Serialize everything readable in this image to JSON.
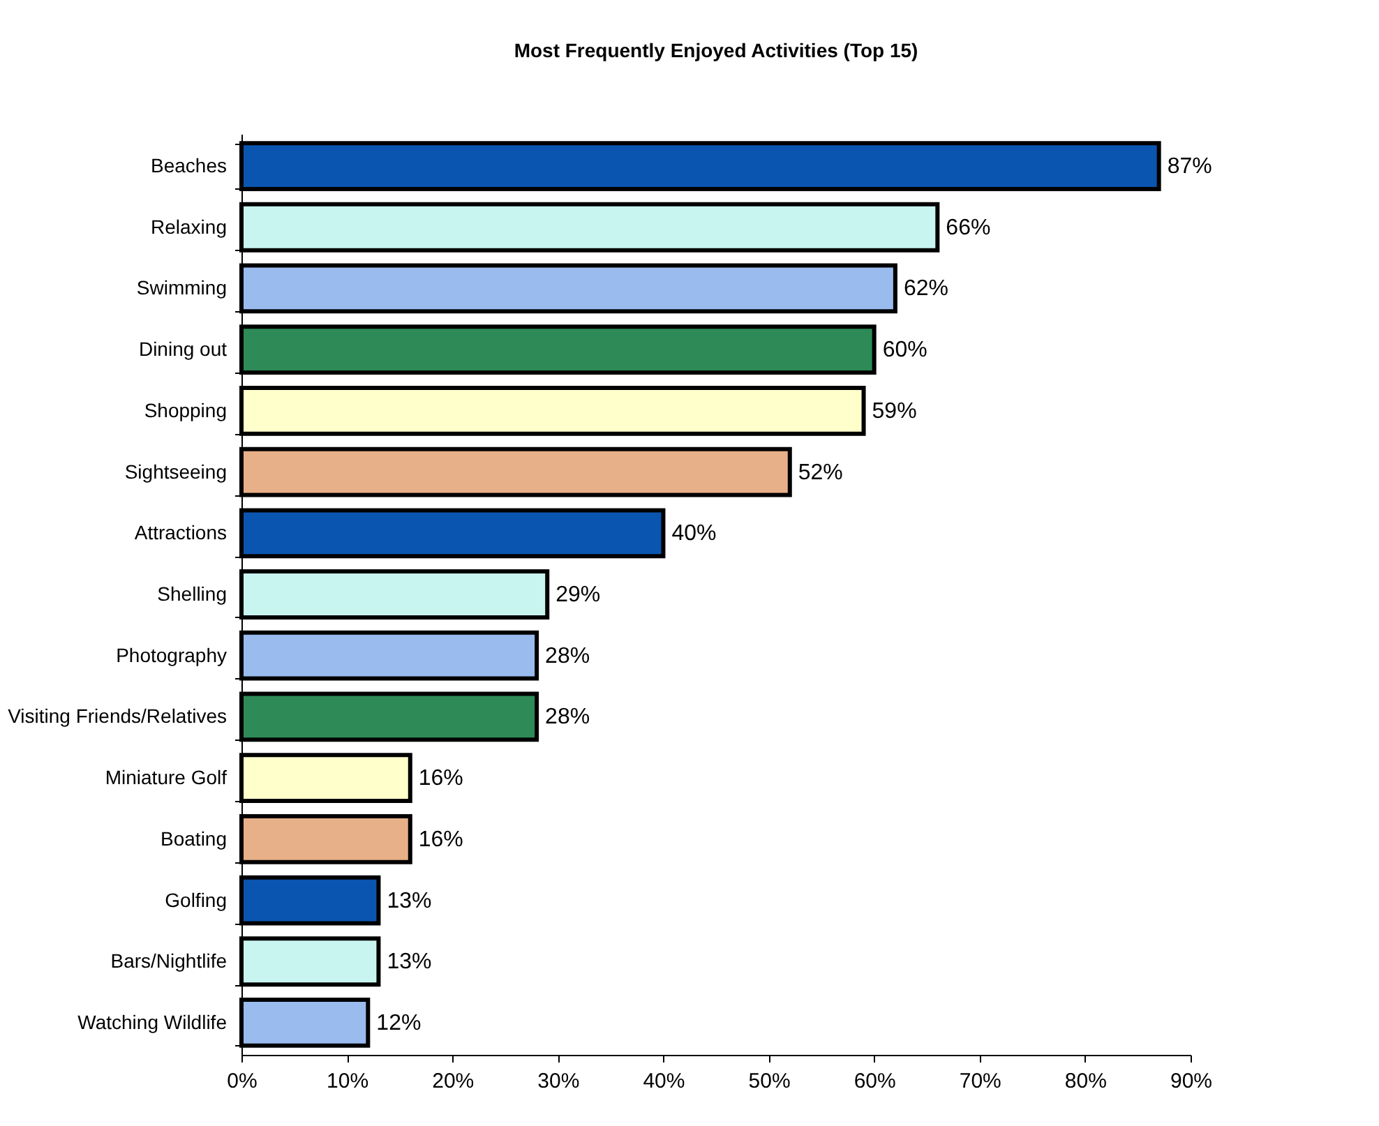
{
  "chart_data": {
    "type": "bar",
    "orientation": "horizontal",
    "title": "Most Frequently Enjoyed Activities (Top 15)",
    "categories": [
      "Beaches",
      "Relaxing",
      "Swimming",
      "Dining out",
      "Shopping",
      "Sightseeing",
      "Attractions",
      "Shelling",
      "Photography",
      "Visiting Friends/Relatives",
      "Miniature Golf",
      "Boating",
      "Golfing",
      "Bars/Nightlife",
      "Watching Wildlife"
    ],
    "values": [
      87,
      66,
      62,
      60,
      59,
      52,
      40,
      29,
      28,
      28,
      16,
      16,
      13,
      13,
      12
    ],
    "value_labels": [
      "87%",
      "66%",
      "62%",
      "60%",
      "59%",
      "52%",
      "40%",
      "29%",
      "28%",
      "28%",
      "16%",
      "16%",
      "13%",
      "13%",
      "12%"
    ],
    "colors": [
      "#0a55b0",
      "#c8f5f0",
      "#99bbee",
      "#2e8b57",
      "#ffffcc",
      "#e8b088",
      "#0a55b0",
      "#c8f5f0",
      "#99bbee",
      "#2e8b57",
      "#ffffcc",
      "#e8b088",
      "#0a55b0",
      "#c8f5f0",
      "#99bbee"
    ],
    "xlim": [
      0,
      90
    ],
    "xticks": [
      {
        "value": 0,
        "label": "0%"
      },
      {
        "value": 10,
        "label": "10%"
      },
      {
        "value": 20,
        "label": "20%"
      },
      {
        "value": 30,
        "label": "30%"
      },
      {
        "value": 40,
        "label": "40%"
      },
      {
        "value": 50,
        "label": "50%"
      },
      {
        "value": 60,
        "label": "60%"
      },
      {
        "value": 70,
        "label": "70%"
      },
      {
        "value": 80,
        "label": "80%"
      },
      {
        "value": 90,
        "label": "90%"
      }
    ],
    "grid": false
  }
}
